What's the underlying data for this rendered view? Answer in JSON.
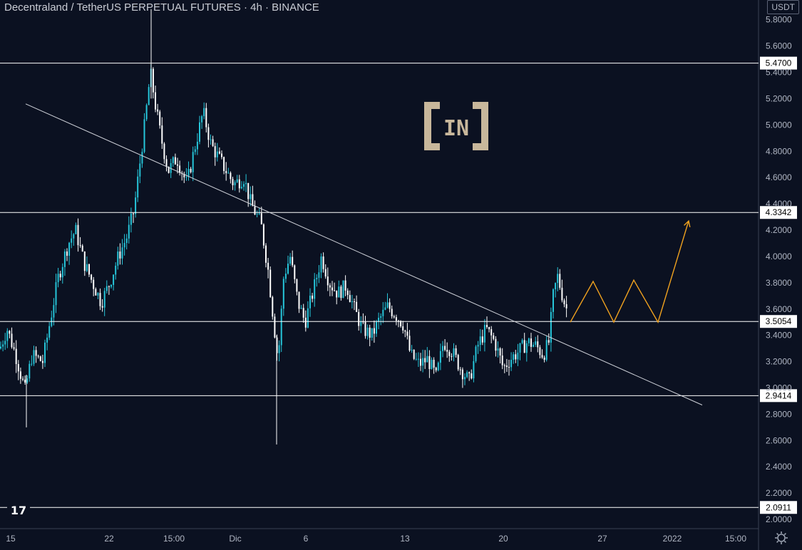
{
  "header": {
    "title": "Decentraland / TetherUS PERPETUAL FUTURES · 4h · BINANCE",
    "currency": "USDT"
  },
  "watermark": {
    "text": "IN",
    "color": "#c8b79b"
  },
  "colors": {
    "background": "#0b1121",
    "candle_up": "#26c6da",
    "candle_down": "#ffffff",
    "line": "#ffffff",
    "projection": "#f0a21f"
  },
  "chart_data": {
    "type": "candlestick",
    "title": "Decentraland / TetherUS PERPETUAL FUTURES · 4h · BINANCE",
    "ylim": [
      1.93,
      5.95
    ],
    "y_ticks": [
      "5.8000",
      "5.6000",
      "5.4000",
      "5.2000",
      "5.0000",
      "4.8000",
      "4.6000",
      "4.4000",
      "4.2000",
      "4.0000",
      "3.8000",
      "3.6000",
      "3.4000",
      "3.2000",
      "3.0000",
      "2.8000",
      "2.6000",
      "2.4000",
      "2.2000",
      "2.0000"
    ],
    "x_ticks": [
      "15",
      "22",
      "15:00",
      "Dic",
      "6",
      "13",
      "20",
      "27",
      "2022",
      "15:00"
    ],
    "x_tick_pos": [
      15,
      153,
      244,
      330,
      429,
      568,
      706,
      845,
      943,
      1032
    ],
    "horizontal_levels": [
      "5.4700",
      "4.3342",
      "3.5054",
      "2.9414",
      "2.0911"
    ],
    "trendline": {
      "start": [
        36,
        5.16
      ],
      "end": [
        985,
        2.87
      ]
    },
    "projection_path": [
      [
        800,
        3.5
      ],
      [
        832,
        3.81
      ],
      [
        861,
        3.5
      ],
      [
        889,
        3.82
      ],
      [
        923,
        3.5
      ],
      [
        966,
        4.27
      ]
    ],
    "price_path": [
      [
        0,
        3.3
      ],
      [
        10,
        3.45
      ],
      [
        22,
        3.25
      ],
      [
        35,
        2.98
      ],
      [
        45,
        3.25
      ],
      [
        60,
        3.2
      ],
      [
        70,
        3.5
      ],
      [
        82,
        3.85
      ],
      [
        96,
        4.1
      ],
      [
        106,
        4.2
      ],
      [
        118,
        3.95
      ],
      [
        130,
        3.8
      ],
      [
        142,
        3.65
      ],
      [
        154,
        3.8
      ],
      [
        166,
        4.0
      ],
      [
        178,
        4.15
      ],
      [
        188,
        4.35
      ],
      [
        196,
        4.7
      ],
      [
        204,
        5.05
      ],
      [
        211,
        5.4
      ],
      [
        218,
        5.15
      ],
      [
        226,
        4.9
      ],
      [
        236,
        4.65
      ],
      [
        248,
        4.75
      ],
      [
        262,
        4.55
      ],
      [
        272,
        4.8
      ],
      [
        285,
        5.1
      ],
      [
        296,
        4.85
      ],
      [
        312,
        4.7
      ],
      [
        328,
        4.55
      ],
      [
        342,
        4.6
      ],
      [
        352,
        4.4
      ],
      [
        366,
        4.25
      ],
      [
        376,
        3.9
      ],
      [
        383,
        3.55
      ],
      [
        390,
        3.2
      ],
      [
        398,
        3.85
      ],
      [
        407,
        4.0
      ],
      [
        418,
        3.65
      ],
      [
        428,
        3.5
      ],
      [
        440,
        3.75
      ],
      [
        451,
        4.0
      ],
      [
        462,
        3.8
      ],
      [
        474,
        3.72
      ],
      [
        486,
        3.78
      ],
      [
        497,
        3.6
      ],
      [
        508,
        3.45
      ],
      [
        522,
        3.4
      ],
      [
        532,
        3.52
      ],
      [
        544,
        3.62
      ],
      [
        556,
        3.55
      ],
      [
        566,
        3.48
      ],
      [
        576,
        3.25
      ],
      [
        588,
        3.18
      ],
      [
        600,
        3.22
      ],
      [
        612,
        3.08
      ],
      [
        622,
        3.35
      ],
      [
        634,
        3.28
      ],
      [
        646,
        3.15
      ],
      [
        658,
        3.05
      ],
      [
        670,
        3.32
      ],
      [
        682,
        3.45
      ],
      [
        694,
        3.35
      ],
      [
        706,
        3.15
      ],
      [
        716,
        3.22
      ],
      [
        728,
        3.28
      ],
      [
        740,
        3.35
      ],
      [
        752,
        3.32
      ],
      [
        762,
        3.25
      ],
      [
        770,
        3.35
      ],
      [
        776,
        3.7
      ],
      [
        782,
        3.85
      ],
      [
        790,
        3.68
      ],
      [
        796,
        3.58
      ]
    ]
  }
}
